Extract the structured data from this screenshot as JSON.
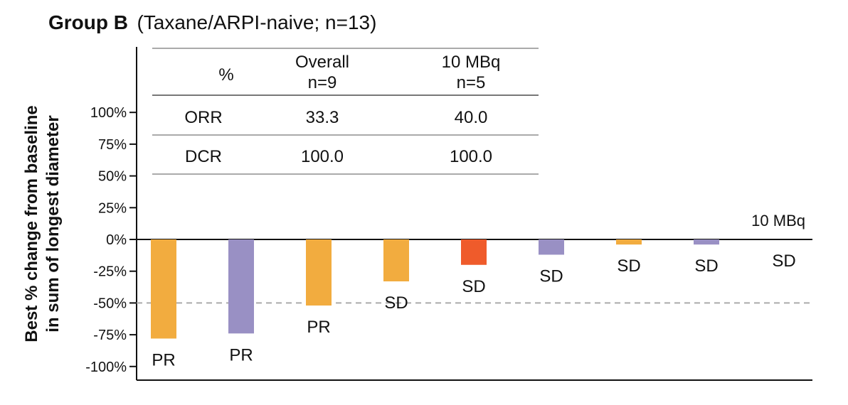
{
  "chart_data": {
    "type": "bar",
    "title_bold": "Group B",
    "title_rest": "(Taxane/ARPI-naive; n=13)",
    "ylabel_line1": "Best % change from baseline",
    "ylabel_line2": "in sum of longest diameter",
    "ylim": [
      -100,
      100
    ],
    "yticks": [
      100,
      75,
      50,
      25,
      0,
      -25,
      -50,
      -75,
      -100
    ],
    "ytick_labels": [
      "100%",
      "75%",
      "50%",
      "25%",
      "0%",
      "-25%",
      "-50%",
      "-75%",
      "-100%"
    ],
    "reference_line": -50,
    "grid": false,
    "annotation": "10 MBq",
    "bars": [
      {
        "value": -78,
        "label": "PR",
        "color": "#F2AC3F"
      },
      {
        "value": -74,
        "label": "PR",
        "color": "#9990C4"
      },
      {
        "value": -52,
        "label": "PR",
        "color": "#F2AC3F"
      },
      {
        "value": -33,
        "label": "SD",
        "color": "#F2AC3F"
      },
      {
        "value": -20,
        "label": "SD",
        "color": "#EF5B2B"
      },
      {
        "value": -12,
        "label": "SD",
        "color": "#9990C4"
      },
      {
        "value": -4,
        "label": "SD",
        "color": "#F2AC3F"
      },
      {
        "value": -4,
        "label": "SD",
        "color": "#9990C4"
      },
      {
        "value": 0,
        "label": "SD",
        "color": "#9990C4"
      }
    ],
    "table": {
      "header": [
        "%",
        "Overall\nn=9",
        "10 MBq\nn=5"
      ],
      "rows": [
        [
          "ORR",
          "33.3",
          "40.0"
        ],
        [
          "DCR",
          "100.0",
          "100.0"
        ]
      ]
    }
  }
}
